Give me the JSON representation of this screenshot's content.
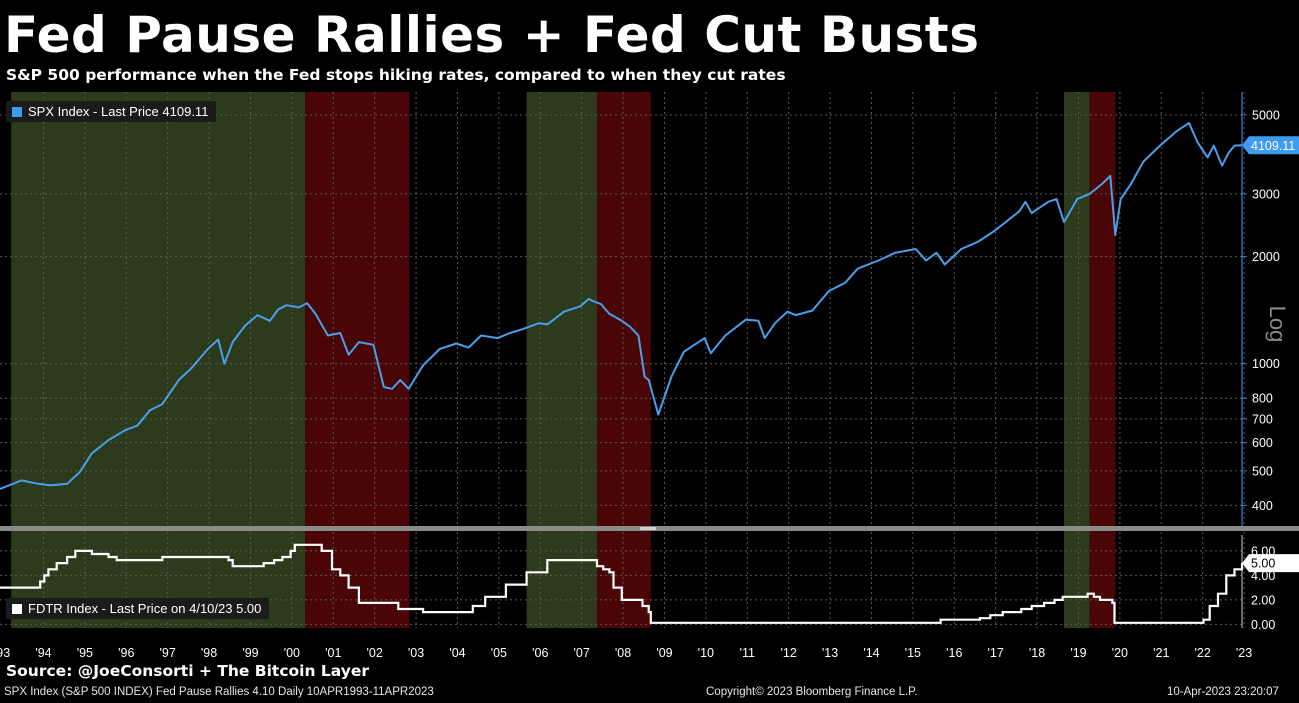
{
  "header": {
    "title": "Fed Pause Rallies + Fed Cut Busts",
    "subtitle": "S&P 500 performance when the Fed stops hiking rates, compared to when they cut rates"
  },
  "legend": {
    "spx": "SPX Index - Last Price 4109.11",
    "fdtr": "FDTR Index - Last Price on 4/10/23 5.00"
  },
  "source": "Source: @JoeConsorti + The Bitcoin Layer",
  "footer": {
    "left": "SPX Index (S&P 500 INDEX) Fed Pause Rallies 4.10  Daily 10APR1993-11APR2023",
    "center": "Copyright© 2023 Bloomberg Finance L.P.",
    "right": "10-Apr-2023 23:20:07"
  },
  "colors": {
    "spx_line": "#4a9fea",
    "fdtr_line": "#ffffff",
    "pause_shade": "#2c3b1c",
    "cut_shade": "#4a0506",
    "grid": "#5a5a5a"
  },
  "chart_data": {
    "type": "line",
    "x_ticks": [
      "'93",
      "'94",
      "'95",
      "'96",
      "'97",
      "'98",
      "'99",
      "'00",
      "'01",
      "'02",
      "'03",
      "'04",
      "'05",
      "'06",
      "'07",
      "'08",
      "'09",
      "'10",
      "'11",
      "'12",
      "'13",
      "'14",
      "'15",
      "'16",
      "'17",
      "'18",
      "'19",
      "'20",
      "'21",
      "'22",
      "'23"
    ],
    "xlim": [
      1993.28,
      2023.28
    ],
    "upper_panel": {
      "y_scale": "log",
      "ylim": [
        350,
        5800
      ],
      "y_axis_label": "Log",
      "y_ticks": [
        400,
        500,
        600,
        700,
        800,
        1000,
        2000,
        3000,
        5000
      ],
      "last_value_label": "4109.11",
      "series": [
        {
          "name": "SPX Index",
          "x": [
            1993.28,
            1993.8,
            1994.2,
            1994.5,
            1994.9,
            1995.2,
            1995.5,
            1995.9,
            1996.3,
            1996.6,
            1996.9,
            1997.2,
            1997.6,
            1997.9,
            1998.3,
            1998.55,
            1998.7,
            1998.9,
            1999.2,
            1999.5,
            1999.8,
            2000.0,
            2000.2,
            2000.5,
            2000.7,
            2000.9,
            2001.2,
            2001.5,
            2001.7,
            2001.95,
            2002.3,
            2002.55,
            2002.75,
            2002.95,
            2003.15,
            2003.5,
            2003.9,
            2004.3,
            2004.6,
            2004.9,
            2005.3,
            2005.6,
            2005.9,
            2006.3,
            2006.5,
            2006.9,
            2007.3,
            2007.5,
            2007.6,
            2007.8,
            2008.0,
            2008.3,
            2008.5,
            2008.7,
            2008.85,
            2008.95,
            2009.18,
            2009.5,
            2009.8,
            2010.3,
            2010.45,
            2010.8,
            2011.3,
            2011.6,
            2011.75,
            2012.0,
            2012.3,
            2012.5,
            2012.9,
            2013.3,
            2013.7,
            2014.0,
            2014.5,
            2014.9,
            2015.4,
            2015.65,
            2015.9,
            2016.1,
            2016.5,
            2016.9,
            2017.3,
            2017.9,
            2018.05,
            2018.2,
            2018.6,
            2018.8,
            2018.98,
            2019.3,
            2019.6,
            2019.9,
            2020.1,
            2020.22,
            2020.35,
            2020.6,
            2020.9,
            2021.3,
            2021.7,
            2022.0,
            2022.2,
            2022.45,
            2022.6,
            2022.8,
            2022.95,
            2023.1,
            2023.28
          ],
          "y": [
            445,
            470,
            460,
            455,
            460,
            495,
            560,
            610,
            650,
            670,
            740,
            770,
            900,
            970,
            1100,
            1170,
            1000,
            1150,
            1280,
            1370,
            1320,
            1420,
            1460,
            1440,
            1480,
            1380,
            1200,
            1220,
            1060,
            1150,
            1130,
            860,
            850,
            900,
            850,
            990,
            1100,
            1140,
            1110,
            1200,
            1180,
            1220,
            1250,
            1300,
            1290,
            1400,
            1450,
            1520,
            1500,
            1470,
            1380,
            1320,
            1270,
            1200,
            920,
            900,
            720,
            920,
            1080,
            1180,
            1070,
            1200,
            1330,
            1320,
            1180,
            1300,
            1400,
            1370,
            1410,
            1600,
            1690,
            1850,
            1950,
            2050,
            2100,
            1950,
            2050,
            1900,
            2100,
            2200,
            2360,
            2680,
            2850,
            2650,
            2850,
            2900,
            2500,
            2900,
            3000,
            3200,
            3370,
            2300,
            2900,
            3200,
            3700,
            4100,
            4500,
            4750,
            4200,
            3800,
            4100,
            3600,
            3900,
            4100,
            4109
          ]
        }
      ]
    },
    "lower_panel": {
      "ylim": [
        -0.3,
        7.3
      ],
      "y_ticks": [
        0.0,
        2.0,
        4.0,
        6.0
      ],
      "y_tick_labels": [
        "0.00",
        "2.00",
        "4.00",
        "6.00"
      ],
      "last_value_label": "5.00",
      "series": [
        {
          "name": "FDTR Index",
          "x": [
            1993.28,
            1994.05,
            1994.25,
            1994.35,
            1994.45,
            1994.65,
            1994.9,
            1995.1,
            1995.5,
            1995.9,
            1996.1,
            1997.2,
            1998.7,
            1998.8,
            1998.9,
            1999.5,
            1999.65,
            1999.9,
            2000.1,
            2000.3,
            2000.4,
            2000.95,
            2001.05,
            2001.3,
            2001.5,
            2001.7,
            2001.95,
            2002.9,
            2003.5,
            2004.5,
            2004.7,
            2005.0,
            2005.5,
            2006.0,
            2006.5,
            2007.6,
            2007.7,
            2007.85,
            2008.0,
            2008.1,
            2008.3,
            2008.8,
            2008.95,
            2009.0,
            2015.95,
            2016.0,
            2016.95,
            2017.2,
            2017.5,
            2017.95,
            2018.2,
            2018.5,
            2018.75,
            2018.95,
            2019.55,
            2019.7,
            2019.85,
            2020.15,
            2020.2,
            2022.2,
            2022.35,
            2022.5,
            2022.7,
            2022.9,
            2023.1,
            2023.28
          ],
          "y": [
            3.0,
            3.0,
            3.5,
            4.0,
            4.5,
            5.0,
            5.5,
            6.0,
            5.75,
            5.5,
            5.25,
            5.5,
            5.5,
            5.25,
            4.75,
            4.75,
            5.0,
            5.25,
            5.5,
            6.0,
            6.5,
            6.5,
            6.0,
            4.5,
            4.0,
            3.0,
            1.75,
            1.25,
            1.0,
            1.0,
            1.5,
            2.25,
            3.25,
            4.25,
            5.25,
            5.25,
            4.75,
            4.5,
            4.25,
            3.0,
            2.0,
            1.5,
            1.0,
            0.125,
            0.125,
            0.375,
            0.5,
            0.75,
            1.0,
            1.25,
            1.5,
            1.75,
            2.0,
            2.25,
            2.5,
            2.25,
            2.0,
            1.75,
            0.125,
            0.125,
            0.375,
            1.5,
            2.5,
            4.0,
            4.5,
            5.0
          ]
        }
      ]
    },
    "pause_periods": [
      [
        1993.55,
        2000.65
      ],
      [
        2006.0,
        2007.7
      ],
      [
        2018.98,
        2019.6
      ]
    ],
    "cut_periods": [
      [
        2000.65,
        2003.17
      ],
      [
        2007.7,
        2009.0
      ],
      [
        2019.6,
        2020.22
      ]
    ]
  }
}
